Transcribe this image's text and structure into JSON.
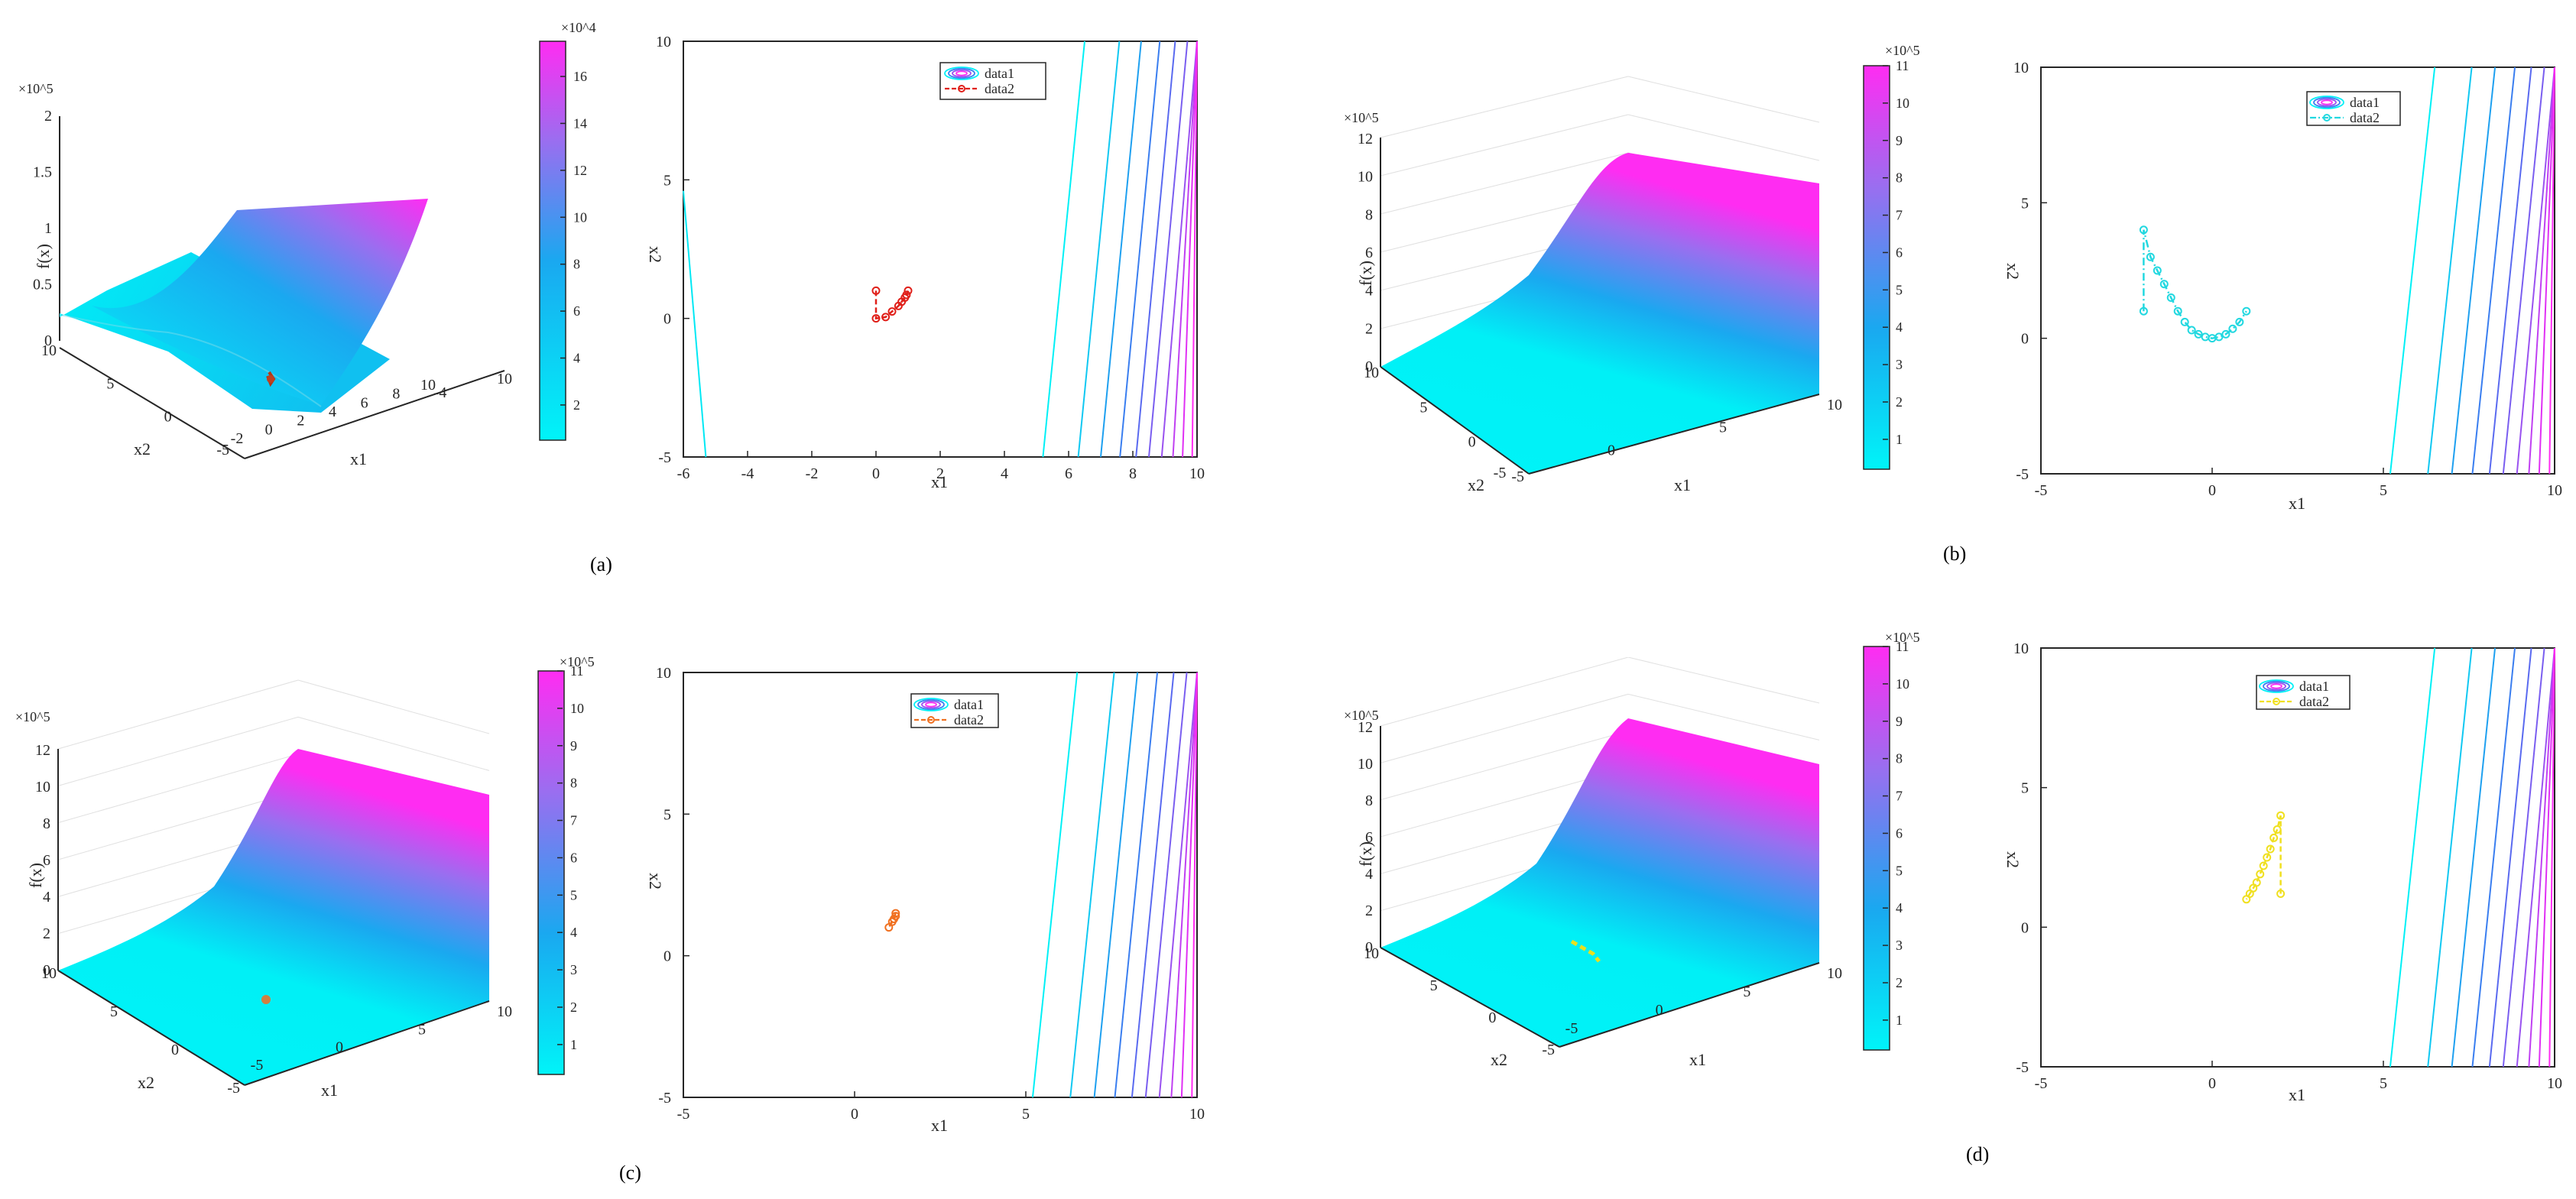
{
  "figure": {
    "panel_labels": [
      "(a)",
      "(b)",
      "(c)",
      "(d)"
    ]
  },
  "chart_data": [
    {
      "panel": "(a)",
      "type": "surface",
      "view": "oblique-a",
      "zlabel": "f(x)",
      "xlabel": "x1",
      "ylabel": "x2",
      "z_exponent": "×10^5",
      "zticks": [
        "0",
        "0.5",
        "1",
        "1.5",
        "2"
      ],
      "xticks": [
        "-2",
        "0",
        "2",
        "4",
        "6",
        "8",
        "10"
      ],
      "yticks": [
        "-5",
        "0",
        "5",
        "10"
      ],
      "extra_xtick": "10",
      "extra_xtick_neg": "-4",
      "path_color": "#d03020",
      "colorbar": {
        "exponent": "×10^4",
        "ticks": [
          "2",
          "4",
          "6",
          "8",
          "10",
          "12",
          "14",
          "16"
        ],
        "min": 0.5,
        "max": 17.5
      }
    },
    {
      "panel": "(a)",
      "type": "contour",
      "xlabel": "x1",
      "ylabel": "x2",
      "xlim": [
        -6,
        10
      ],
      "ylim": [
        -5,
        10
      ],
      "xticks": [
        -6,
        -4,
        -2,
        0,
        2,
        4,
        6,
        8,
        10
      ],
      "yticks": [
        -5,
        0,
        5,
        10
      ],
      "legend": [
        "data1",
        "data2"
      ],
      "legend_position": "top-right",
      "path_color": "#e0201a",
      "path_style": "dashed",
      "path": [
        [
          0,
          1
        ],
        [
          0,
          0
        ],
        [
          0.3,
          0.05
        ],
        [
          0.5,
          0.25
        ],
        [
          0.7,
          0.45
        ],
        [
          0.8,
          0.6
        ],
        [
          0.9,
          0.75
        ],
        [
          0.95,
          0.85
        ],
        [
          1,
          1
        ]
      ]
    },
    {
      "panel": "(b)",
      "type": "surface",
      "view": "oblique-b",
      "zlabel": "f(x)",
      "xlabel": "x1",
      "ylabel": "x2",
      "z_exponent": "×10^5",
      "zticks": [
        "0",
        "2",
        "4",
        "6",
        "8",
        "10",
        "12"
      ],
      "xticks": [
        "-5",
        "0",
        "5",
        "10"
      ],
      "yticks": [
        "-5",
        "0",
        "5",
        "10"
      ],
      "path_color": "#20e0e0",
      "colorbar": {
        "exponent": "×10^5",
        "ticks": [
          "1",
          "2",
          "3",
          "4",
          "5",
          "6",
          "7",
          "8",
          "9",
          "10",
          "11"
        ],
        "min": 0.2,
        "max": 11
      }
    },
    {
      "panel": "(b)",
      "type": "contour",
      "xlabel": "x1",
      "ylabel": "x2",
      "xlim": [
        -5,
        10
      ],
      "ylim": [
        -5,
        10
      ],
      "xticks": [
        -5,
        0,
        5,
        10
      ],
      "yticks": [
        -5,
        0,
        5,
        10
      ],
      "legend": [
        "data1",
        "data2"
      ],
      "legend_position": "top-right",
      "path_color": "#22d8e0",
      "path_style": "dash-dot",
      "path": [
        [
          -2,
          1
        ],
        [
          -2,
          4
        ],
        [
          -1.8,
          3
        ],
        [
          -1.6,
          2.5
        ],
        [
          -1.4,
          2
        ],
        [
          -1.2,
          1.5
        ],
        [
          -1.0,
          1.0
        ],
        [
          -0.8,
          0.6
        ],
        [
          -0.6,
          0.3
        ],
        [
          -0.4,
          0.15
        ],
        [
          -0.2,
          0.05
        ],
        [
          0,
          0
        ],
        [
          0.2,
          0.05
        ],
        [
          0.4,
          0.15
        ],
        [
          0.6,
          0.35
        ],
        [
          0.8,
          0.6
        ],
        [
          1,
          1
        ]
      ]
    },
    {
      "panel": "(c)",
      "type": "surface",
      "view": "oblique-b",
      "zlabel": "f(x)",
      "xlabel": "x1",
      "ylabel": "x2",
      "z_exponent": "×10^5",
      "zticks": [
        "0",
        "2",
        "4",
        "6",
        "8",
        "10",
        "12"
      ],
      "xticks": [
        "-5",
        "0",
        "5",
        "10"
      ],
      "yticks": [
        "-5",
        "0",
        "5",
        "10"
      ],
      "path_color": "#d08040",
      "colorbar": {
        "exponent": "×10^5",
        "ticks": [
          "1",
          "2",
          "3",
          "4",
          "5",
          "6",
          "7",
          "8",
          "9",
          "10",
          "11"
        ],
        "min": 0.2,
        "max": 11
      }
    },
    {
      "panel": "(c)",
      "type": "contour",
      "xlabel": "x1",
      "ylabel": "x2",
      "xlim": [
        -5,
        10
      ],
      "ylim": [
        -5,
        10
      ],
      "xticks": [
        -5,
        0,
        5,
        10
      ],
      "yticks": [
        -5,
        0,
        5,
        10
      ],
      "legend": [
        "data1",
        "data2"
      ],
      "legend_position": "top-right",
      "path_color": "#f07020",
      "path_style": "dashed",
      "path": [
        [
          1.2,
          1.5
        ],
        [
          1.0,
          1.0
        ],
        [
          1.1,
          1.2
        ],
        [
          1.15,
          1.3
        ],
        [
          1.2,
          1.4
        ]
      ]
    },
    {
      "panel": "(d)",
      "type": "surface",
      "view": "oblique-b",
      "zlabel": "f(x)",
      "xlabel": "x1",
      "ylabel": "x2",
      "z_exponent": "×10^5",
      "zticks": [
        "0",
        "2",
        "4",
        "6",
        "8",
        "10",
        "12"
      ],
      "xticks": [
        "-5",
        "0",
        "5",
        "10"
      ],
      "yticks": [
        "-5",
        "0",
        "5",
        "10"
      ],
      "path_color": "#e8e020",
      "colorbar": {
        "exponent": "×10^5",
        "ticks": [
          "1",
          "2",
          "3",
          "4",
          "5",
          "6",
          "7",
          "8",
          "9",
          "10",
          "11"
        ],
        "min": 0.2,
        "max": 11
      }
    },
    {
      "panel": "(d)",
      "type": "contour",
      "xlabel": "x1",
      "ylabel": "x2",
      "xlim": [
        -5,
        10
      ],
      "ylim": [
        -5,
        10
      ],
      "xticks": [
        -5,
        0,
        5,
        10
      ],
      "yticks": [
        -5,
        0,
        5,
        10
      ],
      "legend": [
        "data1",
        "data2"
      ],
      "legend_position": "top-right",
      "path_color": "#f0e020",
      "path_style": "dashed",
      "path": [
        [
          2,
          1.2
        ],
        [
          2,
          4
        ],
        [
          1.9,
          3.5
        ],
        [
          1.8,
          3.2
        ],
        [
          1.7,
          2.8
        ],
        [
          1.6,
          2.5
        ],
        [
          1.5,
          2.2
        ],
        [
          1.4,
          1.9
        ],
        [
          1.3,
          1.6
        ],
        [
          1.2,
          1.4
        ],
        [
          1.1,
          1.2
        ],
        [
          1,
          1
        ]
      ]
    }
  ]
}
